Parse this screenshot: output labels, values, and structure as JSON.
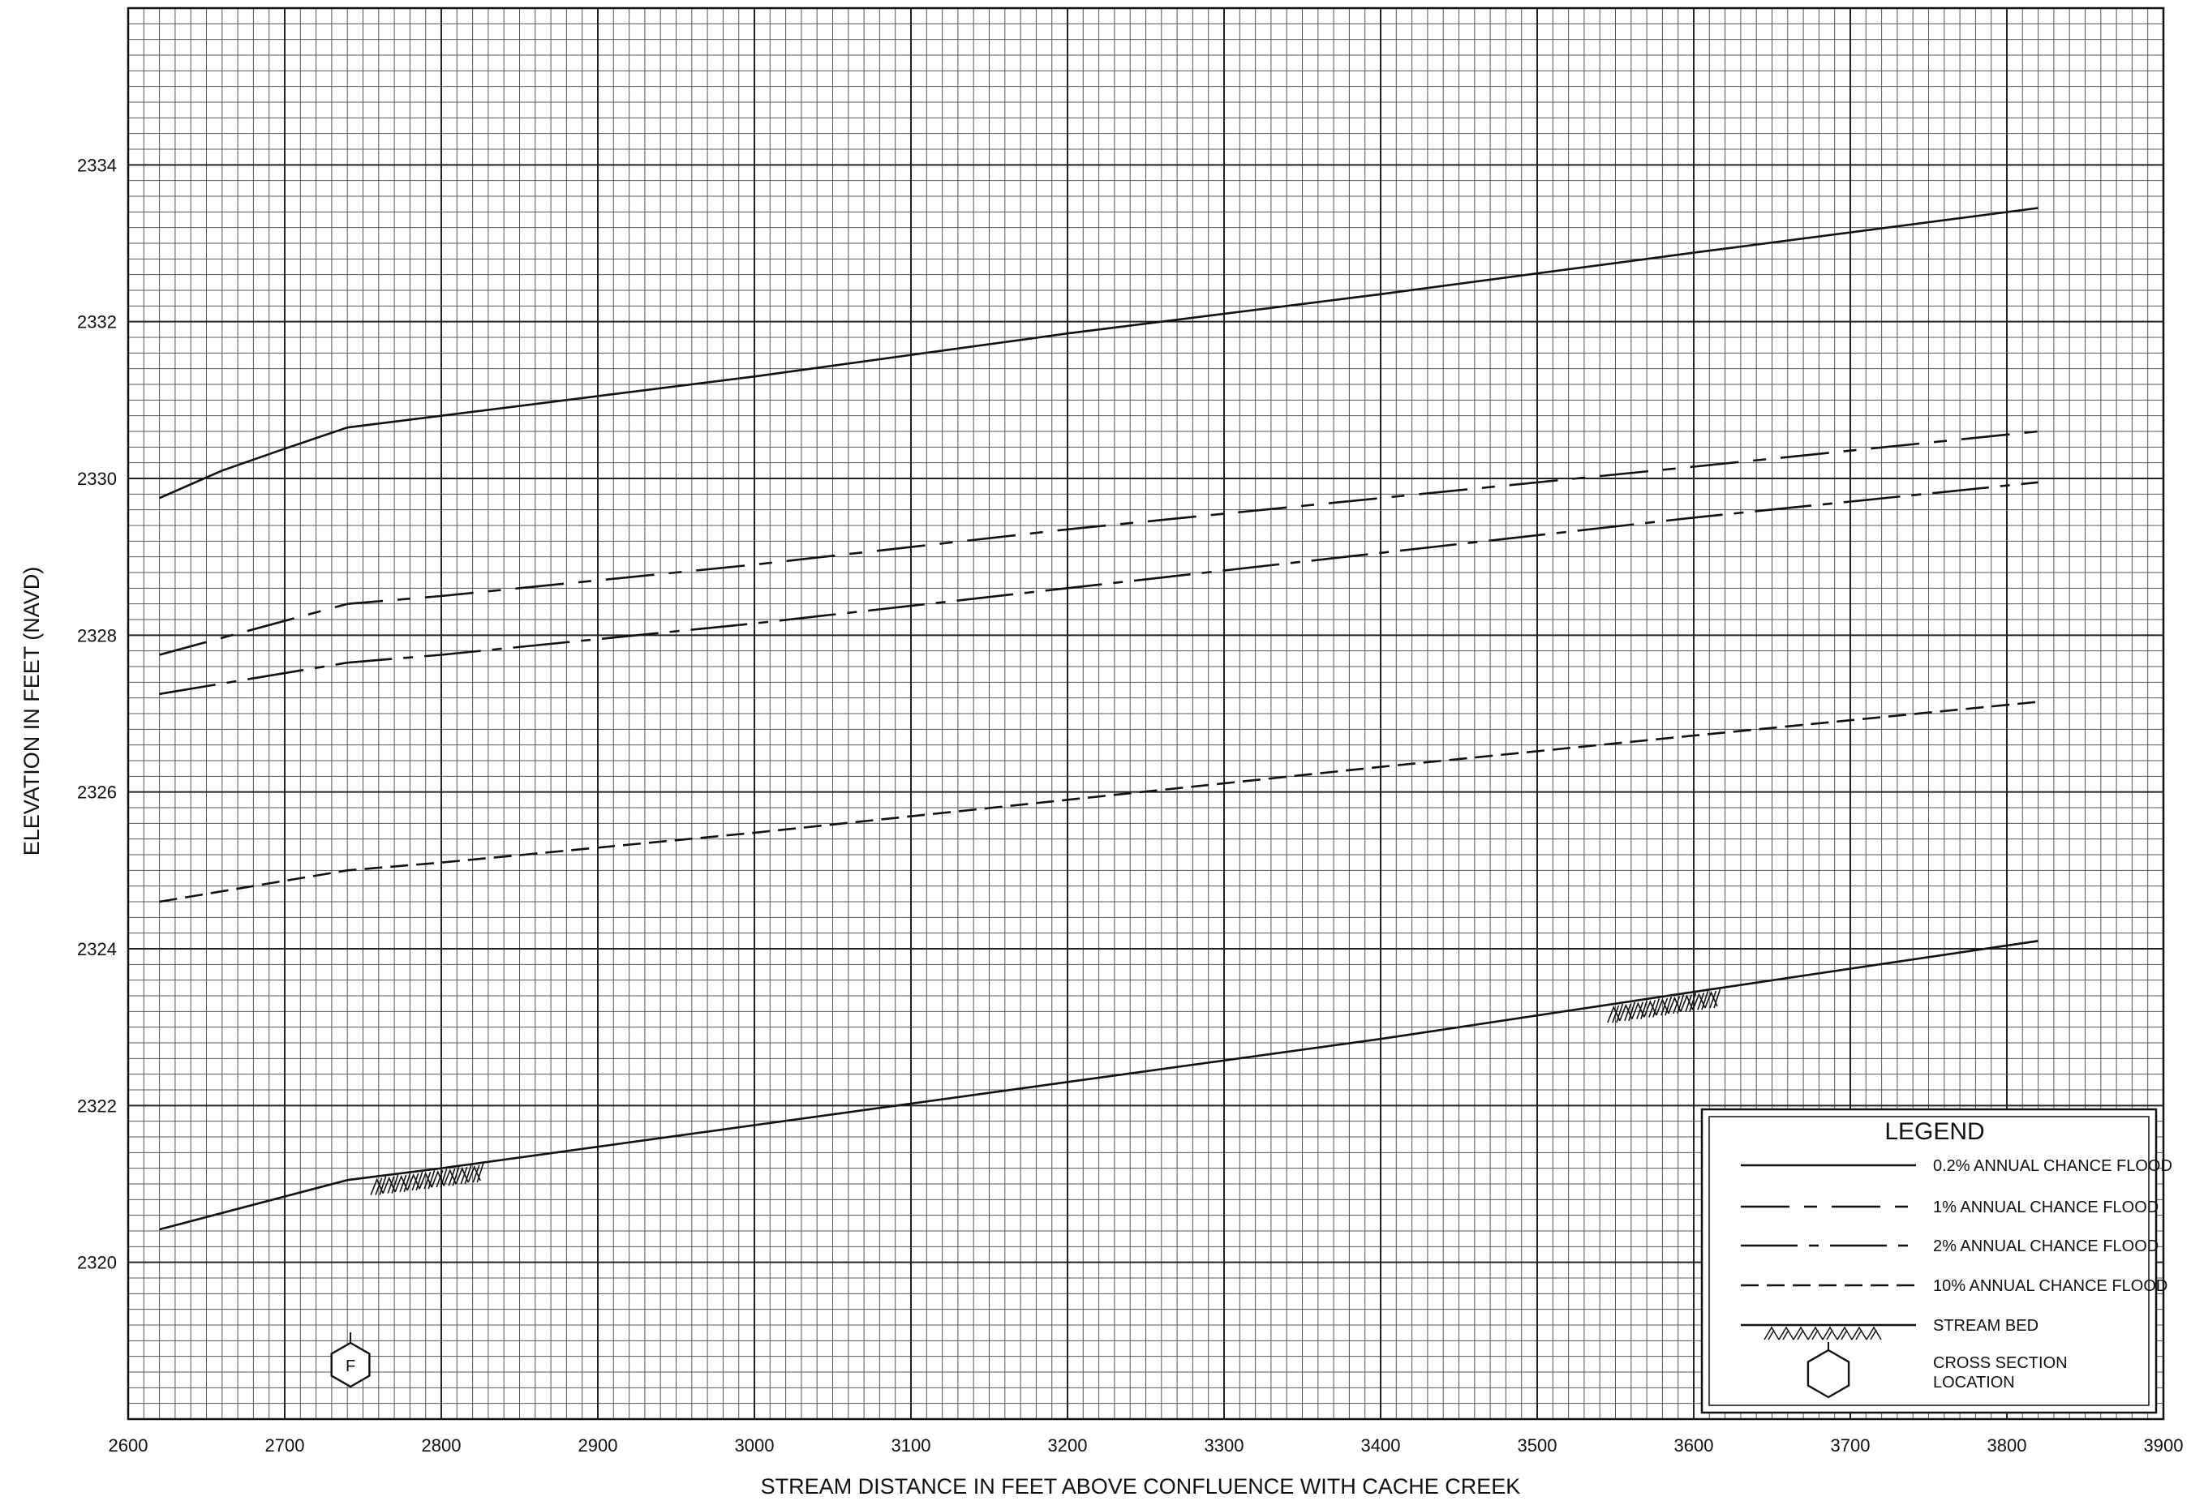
{
  "chart_data": {
    "type": "line",
    "title": "",
    "xlabel": "STREAM DISTANCE IN FEET ABOVE CONFLUENCE WITH CACHE CREEK",
    "ylabel": "ELEVATION IN FEET (NAVD)",
    "xlim": [
      2600,
      3900
    ],
    "ylim": [
      2318,
      2336
    ],
    "x_ticks": [
      "2600",
      "2700",
      "2800",
      "2900",
      "3000",
      "3100",
      "3200",
      "3300",
      "3400",
      "3500",
      "3600",
      "3700",
      "3800",
      "3900"
    ],
    "y_ticks": [
      "2320",
      "2322",
      "2324",
      "2326",
      "2328",
      "2330",
      "2332",
      "2334"
    ],
    "grid": true,
    "legend_position": "bottom-right",
    "legend": {
      "title": "LEGEND",
      "items": [
        "0.2% ANNUAL CHANCE FLOOD",
        "1% ANNUAL CHANCE FLOOD",
        "2% ANNUAL CHANCE FLOOD",
        "10% ANNUAL CHANCE FLOOD",
        "STREAM BED",
        "CROSS SECTION LOCATION"
      ]
    },
    "series": [
      {
        "name": "0.2% ANNUAL CHANCE FLOOD",
        "style": "solid",
        "x": [
          2620,
          2660,
          2700,
          2740,
          2800,
          3000,
          3200,
          3400,
          3600,
          3820
        ],
        "y": [
          2329.75,
          2330.1,
          2330.38,
          2330.65,
          2330.8,
          2331.3,
          2331.85,
          2332.35,
          2332.88,
          2333.45
        ]
      },
      {
        "name": "1% ANNUAL CHANCE FLOOD",
        "style": "long-dash",
        "x": [
          2620,
          2740,
          2800,
          3000,
          3200,
          3400,
          3600,
          3820
        ],
        "y": [
          2327.75,
          2328.4,
          2328.5,
          2328.9,
          2329.35,
          2329.75,
          2330.15,
          2330.6
        ]
      },
      {
        "name": "2% ANNUAL CHANCE FLOOD",
        "style": "dash-dot",
        "x": [
          2620,
          2740,
          2800,
          3000,
          3200,
          3400,
          3600,
          3820
        ],
        "y": [
          2327.25,
          2327.65,
          2327.75,
          2328.15,
          2328.6,
          2329.05,
          2329.5,
          2329.95
        ]
      },
      {
        "name": "10% ANNUAL CHANCE FLOOD",
        "style": "short-dash",
        "x": [
          2620,
          2740,
          2800,
          3000,
          3200,
          3400,
          3600,
          3820
        ],
        "y": [
          2324.6,
          2325.0,
          2325.1,
          2325.48,
          2325.9,
          2326.32,
          2326.72,
          2327.15
        ]
      },
      {
        "name": "STREAM BED",
        "style": "solid",
        "x": [
          2620,
          2740,
          2800,
          3000,
          3200,
          3400,
          3600,
          3820
        ],
        "y": [
          2320.42,
          2321.05,
          2321.2,
          2321.75,
          2322.3,
          2322.85,
          2323.45,
          2324.1
        ]
      }
    ],
    "cross_sections": [
      {
        "label": "F",
        "x": 2742
      }
    ]
  },
  "colors": {
    "line": "#111111",
    "grid_major": "#222222",
    "grid_minor": "#555555",
    "background": "#ffffff"
  }
}
